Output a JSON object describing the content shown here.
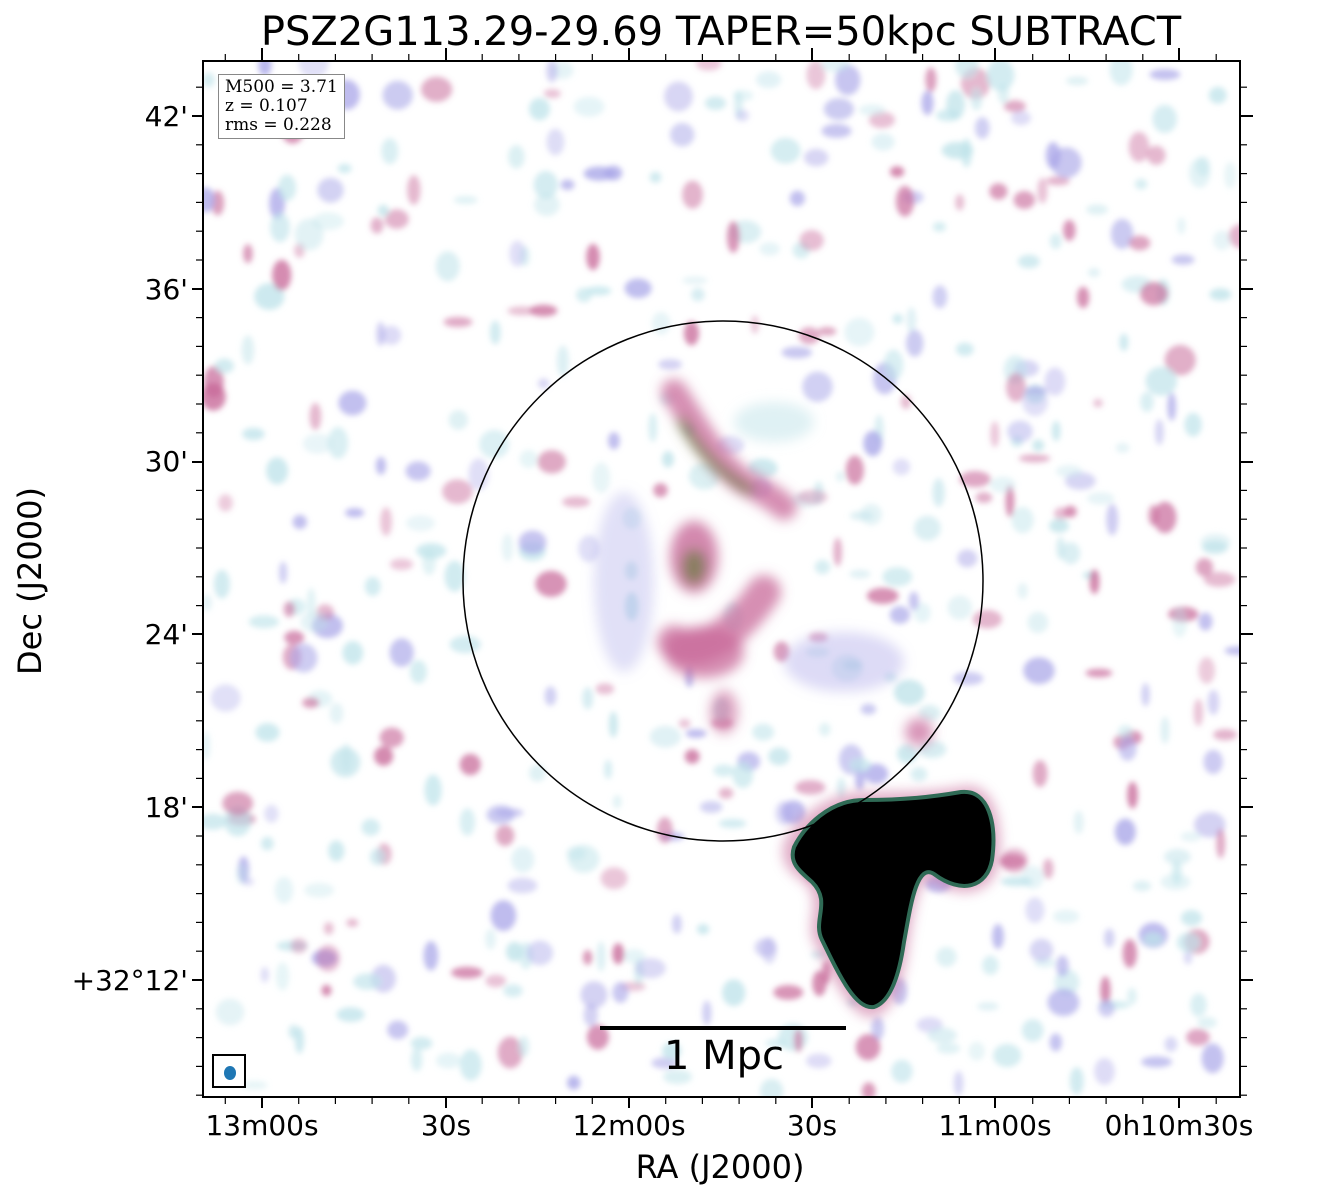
{
  "title": "PSZ2G113.29-29.69 TAPER=50kpc SUBTRACT",
  "info_box": {
    "m500": "M500 = 3.71",
    "z": "z = 0.107",
    "rms": "rms = 0.228"
  },
  "scale_bar": {
    "label": "1 Mpc"
  },
  "axes": {
    "xlabel": "RA (J2000)",
    "ylabel": "Dec (J2000)",
    "yticks": [
      "42'",
      "36'",
      "30'",
      "24'",
      "18'",
      "+32°12'"
    ],
    "xticks": [
      "13m00s",
      "30s",
      "12m00s",
      "30s",
      "11m00s",
      "0h10m30s"
    ]
  },
  "colors": {
    "beam": "#1f77b4",
    "frame": "#000000",
    "low_emission": "#bfe3ea",
    "mid_emission": "#a9a6e8",
    "high_emission": "#c86a9a",
    "peak_emission": "#6a7a40",
    "saturated_source": "#000000"
  }
}
